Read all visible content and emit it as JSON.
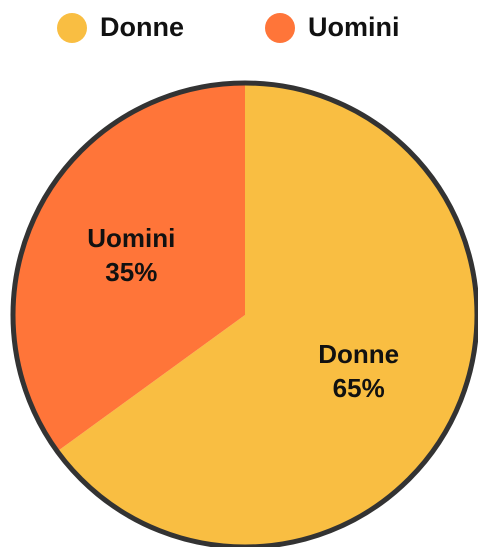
{
  "chart_data": {
    "type": "pie",
    "categories": [
      "Donne",
      "Uomini"
    ],
    "values": [
      65,
      35
    ],
    "value_labels": [
      "65%",
      "35%"
    ],
    "colors": [
      "#f9be42",
      "#ff7539"
    ],
    "legend": "top"
  }
}
